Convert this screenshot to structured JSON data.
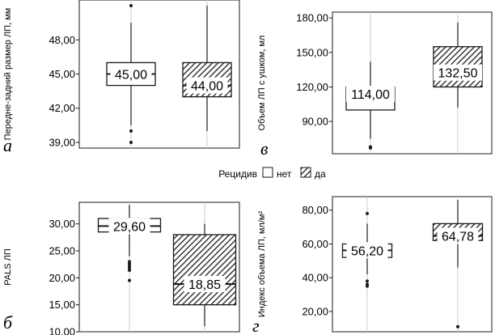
{
  "legend": {
    "title": "Рецидив",
    "items": [
      "нет",
      "да"
    ]
  },
  "colors": {
    "box_no": "#ffffff",
    "box_yes_hatch": "#1a1a1a",
    "stroke": "#1a1a1a",
    "grid": "#cccccc"
  },
  "chart_data": [
    {
      "type": "box",
      "panel_letter": "а",
      "ylabel": "Передне-задний размер ЛП, мм",
      "categories": [
        "нет",
        "да"
      ],
      "ylim": [
        38.5,
        51.5
      ],
      "yticks": [
        39,
        42,
        45,
        48
      ],
      "ytick_labels": [
        "39,00",
        "42,00",
        "45,00",
        "48,00"
      ],
      "series": [
        {
          "name": "нет",
          "whisker_low": 40.5,
          "q1": 44.0,
          "median": 45.0,
          "q3": 46.0,
          "whisker_high": 49.5,
          "outliers": [
            51,
            40,
            39
          ],
          "median_label": "45,00"
        },
        {
          "name": "да",
          "whisker_low": 40.0,
          "q1": 43.0,
          "median": 44.0,
          "q3": 46.0,
          "whisker_high": 51.0,
          "outliers": [],
          "median_label": "44,00"
        }
      ]
    },
    {
      "type": "box",
      "panel_letter": "в",
      "ylabel": "Объем ЛП с ушком, мл",
      "categories": [
        "нет",
        "да"
      ],
      "ylim": [
        62,
        185
      ],
      "yticks": [
        90,
        120,
        150,
        180
      ],
      "ytick_labels": [
        "90,00",
        "120,00",
        "150,00",
        "180,00"
      ],
      "series": [
        {
          "name": "нет",
          "whisker_low": 75,
          "q1": 100,
          "median": 114,
          "q3": 120,
          "whisker_high": 142,
          "outliers": [
            68,
            67
          ],
          "median_label": "114,00"
        },
        {
          "name": "да",
          "whisker_low": 102,
          "q1": 120,
          "median": 132.5,
          "q3": 155,
          "whisker_high": 176,
          "outliers": [],
          "median_label": "132,50"
        }
      ]
    },
    {
      "type": "box",
      "panel_letter": "б",
      "ylabel": "PALS ЛП",
      "categories": [
        "нет",
        "да"
      ],
      "ylim": [
        10,
        34
      ],
      "yticks": [
        10,
        15,
        20,
        25,
        30
      ],
      "ytick_labels": [
        "10,00",
        "15,00",
        "20,00",
        "25,00",
        "30,00"
      ],
      "series": [
        {
          "name": "нет",
          "whisker_low": 24,
          "q1": 28.5,
          "median": 29.6,
          "q3": 31,
          "whisker_high": 33.5,
          "outliers": [
            23,
            22.6,
            22.2,
            21.8,
            21.4,
            19.5
          ],
          "median_label": "29,60"
        },
        {
          "name": "да",
          "whisker_low": 11,
          "q1": 15,
          "median": 18.85,
          "q3": 28,
          "whisker_high": 30,
          "outliers": [],
          "median_label": "18,85"
        }
      ]
    },
    {
      "type": "box",
      "panel_letter": "г",
      "ylabel": "Индекс объема ЛП, мл/м²",
      "categories": [
        "нет",
        "да"
      ],
      "ylim": [
        8,
        88
      ],
      "yticks": [
        20,
        40,
        60,
        80
      ],
      "ytick_labels": [
        "20,00",
        "40,00",
        "60,00",
        "80,00"
      ],
      "series": [
        {
          "name": "нет",
          "whisker_low": 42,
          "q1": 52,
          "median": 56.2,
          "q3": 60,
          "whisker_high": 72,
          "outliers": [
            78,
            38,
            36,
            35
          ],
          "median_label": "56,20"
        },
        {
          "name": "да",
          "whisker_low": 46,
          "q1": 62,
          "median": 64.78,
          "q3": 72,
          "whisker_high": 86,
          "outliers": [
            11
          ],
          "median_label": "64,78"
        }
      ]
    }
  ]
}
